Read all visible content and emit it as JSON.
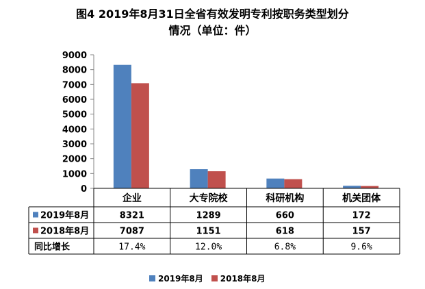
{
  "title_line1": "图4 2019年8月31日全省有效发明专利按职务类型划分",
  "title_line2": "情况（单位：件）",
  "colors": {
    "s2019": "#4F81BD",
    "s2018": "#C0504D",
    "axis": "#868686",
    "table_border": "#000000"
  },
  "chart_data": {
    "type": "bar",
    "categories": [
      "企业",
      "大专院校",
      "科研机构",
      "机关团体"
    ],
    "series": [
      {
        "name": "2019年8月",
        "values": [
          8321,
          1289,
          660,
          172
        ],
        "labels": [
          "8321",
          "1289",
          "660",
          "172"
        ]
      },
      {
        "name": "2018年8月",
        "values": [
          7087,
          1151,
          618,
          157
        ],
        "labels": [
          "7087",
          "1151",
          "618",
          "157"
        ]
      }
    ],
    "extra_row": {
      "name": "同比增长",
      "values": [
        "17.4%",
        "12.0%",
        "6.8%",
        "9.6%"
      ]
    },
    "yticks": [
      "0",
      "1000",
      "2000",
      "3000",
      "4000",
      "5000",
      "6000",
      "7000",
      "8000",
      "9000"
    ],
    "ylim": [
      0,
      9000
    ],
    "legend_position": "bottom"
  }
}
